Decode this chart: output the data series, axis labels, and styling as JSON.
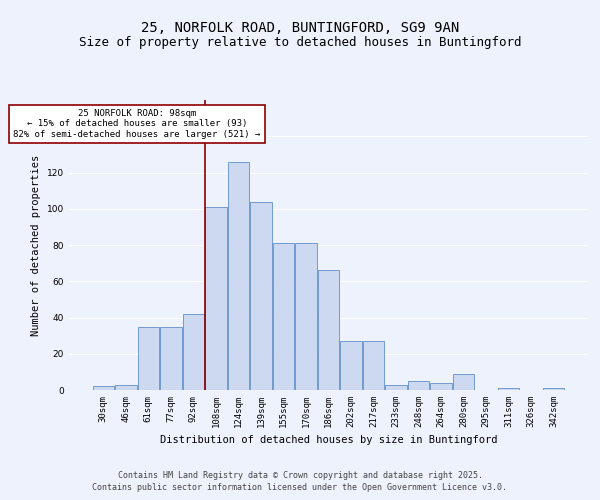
{
  "title": "25, NORFOLK ROAD, BUNTINGFORD, SG9 9AN",
  "subtitle": "Size of property relative to detached houses in Buntingford",
  "xlabel": "Distribution of detached houses by size in Buntingford",
  "ylabel": "Number of detached properties",
  "categories": [
    "30sqm",
    "46sqm",
    "61sqm",
    "77sqm",
    "92sqm",
    "108sqm",
    "124sqm",
    "139sqm",
    "155sqm",
    "170sqm",
    "186sqm",
    "202sqm",
    "217sqm",
    "233sqm",
    "248sqm",
    "264sqm",
    "280sqm",
    "295sqm",
    "311sqm",
    "326sqm",
    "342sqm"
  ],
  "values": [
    2,
    3,
    35,
    35,
    42,
    101,
    126,
    104,
    81,
    81,
    66,
    27,
    27,
    3,
    5,
    4,
    9,
    0,
    1,
    0,
    1
  ],
  "bar_color": "#ccd9f0",
  "bar_edge_color": "#6090c8",
  "vline_x_index": 4.5,
  "vline_color": "#8b0000",
  "annotation_text": "25 NORFOLK ROAD: 98sqm\n← 15% of detached houses are smaller (93)\n82% of semi-detached houses are larger (521) →",
  "annotation_box_color": "#ffffff",
  "annotation_box_edge_color": "#8b0000",
  "ylim": [
    0,
    160
  ],
  "yticks": [
    0,
    20,
    40,
    60,
    80,
    100,
    120,
    140,
    160
  ],
  "footer_line1": "Contains HM Land Registry data © Crown copyright and database right 2025.",
  "footer_line2": "Contains public sector information licensed under the Open Government Licence v3.0.",
  "background_color": "#eef2fc",
  "grid_color": "#ffffff",
  "title_fontsize": 10,
  "subtitle_fontsize": 9,
  "axis_label_fontsize": 7.5,
  "tick_fontsize": 6.5,
  "footer_fontsize": 6
}
